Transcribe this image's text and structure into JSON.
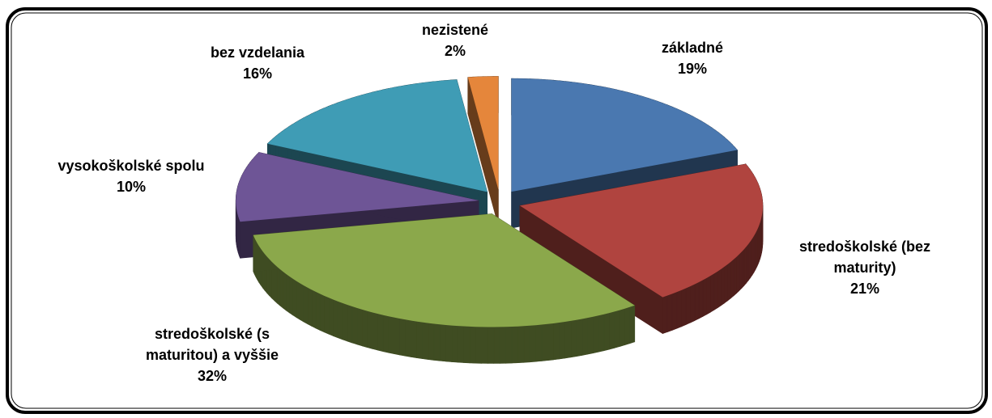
{
  "chart_data": {
    "type": "pie",
    "categories": [
      "základné",
      "stredoškolské (bez maturity)",
      "stredoškolské (s maturitou) a vyššie",
      "vysokoškolské spolu",
      "bez vzdelania",
      "nezistené"
    ],
    "values": [
      19,
      21,
      32,
      10,
      16,
      2
    ],
    "value_labels": [
      "19%",
      "21%",
      "32%",
      "10%",
      "16%",
      "2%"
    ],
    "colors": [
      "#4a78b0",
      "#b0443f",
      "#8ba84b",
      "#6e5596",
      "#3f9cb5",
      "#e5863b"
    ]
  }
}
